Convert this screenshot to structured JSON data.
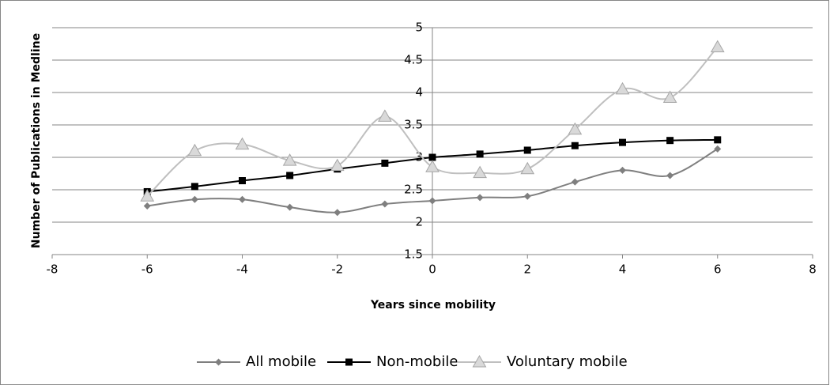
{
  "chart_data": {
    "type": "line",
    "x_label": "Years since mobility",
    "y_label": "Number of Publications in Medline",
    "xlim": [
      -8,
      8
    ],
    "xticks": [
      -8,
      -6,
      -4,
      -2,
      0,
      2,
      4,
      6,
      8
    ],
    "ylim": [
      1.5,
      5
    ],
    "yticks": [
      1.5,
      2,
      2.5,
      3,
      3.5,
      4,
      4.5,
      5
    ],
    "grid": true,
    "smooth": true,
    "legend": "bottom",
    "x": [
      -6,
      -5,
      -4,
      -3,
      -2,
      -1,
      0,
      1,
      2,
      3,
      4,
      5,
      6
    ],
    "series": [
      {
        "name": "All mobile",
        "color": "#7f7f7f",
        "marker": "diamond",
        "values": [
          2.25,
          2.35,
          2.35,
          2.23,
          2.15,
          2.28,
          2.33,
          2.38,
          2.4,
          2.62,
          2.8,
          2.72,
          3.13
        ]
      },
      {
        "name": "Non-mobile",
        "color": "#000000",
        "marker": "square",
        "values": [
          2.47,
          2.55,
          2.64,
          2.72,
          2.82,
          2.91,
          3.0,
          3.05,
          3.11,
          3.18,
          3.23,
          3.26,
          3.27
        ]
      },
      {
        "name": "Voluntary mobile",
        "color": "#bfbfbf",
        "marker": "triangle",
        "values": [
          2.4,
          3.1,
          3.2,
          2.95,
          2.87,
          3.63,
          2.85,
          2.76,
          2.82,
          3.43,
          4.05,
          3.92,
          4.7
        ]
      }
    ]
  }
}
